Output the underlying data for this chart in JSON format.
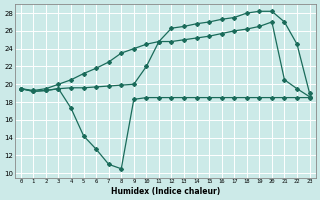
{
  "xlabel": "Humidex (Indice chaleur)",
  "bg_color": "#cceae8",
  "grid_color": "#ffffff",
  "line_color": "#1a6b5a",
  "xlim": [
    -0.5,
    23.5
  ],
  "ylim": [
    9.5,
    29.0
  ],
  "yticks": [
    10,
    12,
    14,
    16,
    18,
    20,
    22,
    24,
    26,
    28
  ],
  "xticks": [
    0,
    1,
    2,
    3,
    4,
    5,
    6,
    7,
    8,
    9,
    10,
    11,
    12,
    13,
    14,
    15,
    16,
    17,
    18,
    19,
    20,
    21,
    22,
    23
  ],
  "line1_x": [
    0,
    1,
    2,
    3,
    4,
    5,
    6,
    7,
    8,
    9,
    10,
    11,
    12,
    13,
    14,
    15,
    16,
    17,
    18,
    19,
    20,
    21,
    22,
    23
  ],
  "line1_y": [
    19.5,
    19.3,
    19.5,
    20.0,
    20.5,
    21.2,
    21.8,
    22.5,
    23.5,
    24.0,
    24.5,
    24.8,
    26.3,
    26.5,
    26.8,
    27.0,
    27.3,
    27.5,
    28.0,
    28.2,
    28.2,
    27.0,
    24.5,
    19.0
  ],
  "line2_x": [
    0,
    1,
    2,
    3,
    4,
    5,
    6,
    7,
    8,
    9,
    10,
    11,
    12,
    13,
    14,
    15,
    16,
    17,
    18,
    19,
    20,
    21,
    22,
    23
  ],
  "line2_y": [
    19.5,
    19.2,
    19.3,
    19.5,
    19.6,
    19.6,
    19.7,
    19.8,
    19.9,
    20.0,
    22.0,
    24.8,
    24.8,
    25.0,
    25.2,
    25.4,
    25.7,
    26.0,
    26.2,
    26.5,
    27.0,
    20.5,
    19.5,
    18.6
  ],
  "line3_x": [
    0,
    1,
    2,
    3,
    4,
    5,
    6,
    7,
    8,
    9,
    10,
    11,
    12,
    13,
    14,
    15,
    16,
    17,
    18,
    19,
    20,
    21,
    22,
    23
  ],
  "line3_y": [
    19.5,
    19.2,
    19.3,
    19.5,
    17.3,
    14.2,
    12.7,
    11.0,
    10.5,
    18.3,
    18.5,
    18.5,
    18.5,
    18.5,
    18.5,
    18.5,
    18.5,
    18.5,
    18.5,
    18.5,
    18.5,
    18.5,
    18.5,
    18.5
  ]
}
